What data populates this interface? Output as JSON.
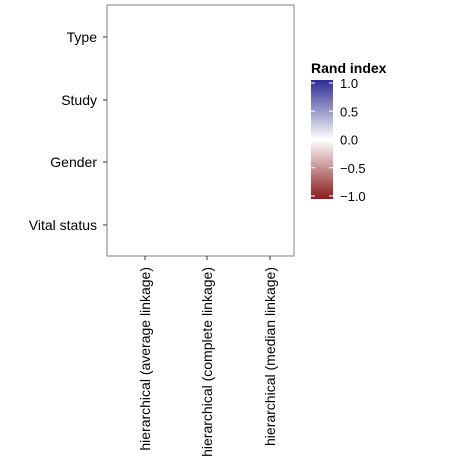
{
  "chart_data": {
    "type": "heatmap",
    "title": "",
    "xlabel": "",
    "ylabel": "",
    "rows": [
      "Type",
      "Study",
      "Gender",
      "Vital status"
    ],
    "columns": [
      "hierarchical (average linkage)",
      "hierarchical (complete linkage)",
      "hierarchical (median linkage)"
    ],
    "values": [
      [
        null,
        null,
        null
      ],
      [
        null,
        null,
        null
      ],
      [
        null,
        null,
        null
      ],
      [
        null,
        null,
        null
      ]
    ],
    "legend": {
      "title": "Rand index",
      "placement": "right",
      "range": [
        -1.0,
        1.0
      ],
      "ticks": [
        {
          "value": 1.0,
          "label": "1.0"
        },
        {
          "value": 0.5,
          "label": "0.5"
        },
        {
          "value": 0.0,
          "label": "0.0"
        },
        {
          "value": -0.5,
          "label": "−0.5"
        },
        {
          "value": -1.0,
          "label": "−1.0"
        }
      ],
      "colors": {
        "high": "#2b2c92",
        "mid": "#ffffff",
        "low": "#8b1a1a"
      }
    },
    "grid": false
  }
}
